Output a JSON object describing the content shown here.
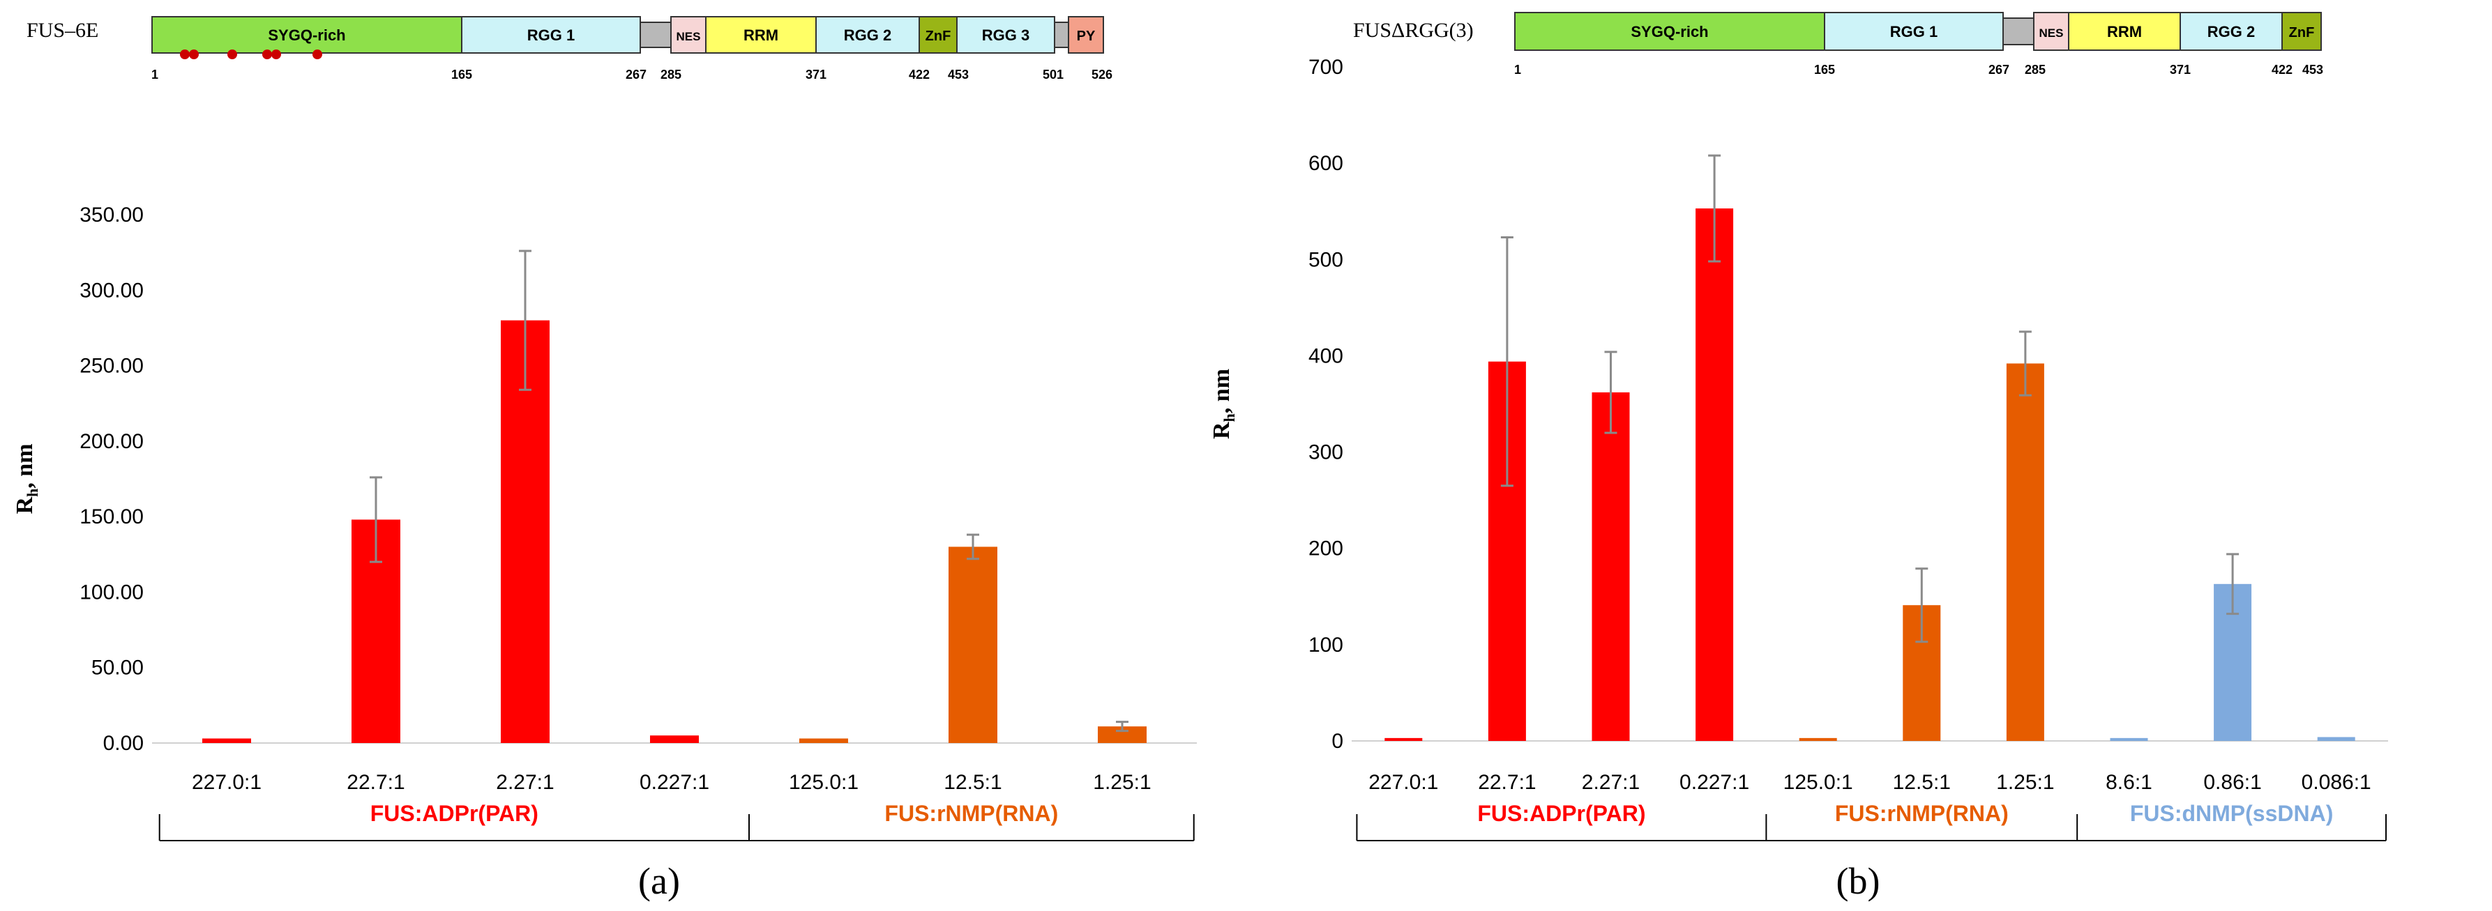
{
  "colors": {
    "par": "#ff0000",
    "rna": "#e65c00",
    "ssdna": "#7faadd",
    "sygq": "#8ee04a",
    "rgg": "#cdf3f8",
    "nes": "#f7d6d6",
    "rrm": "#ffff66",
    "znf": "#99b516",
    "py": "#f4a08a",
    "linker": "#b8b8b8",
    "mutation": "#cc0000",
    "error_bar": "#8a8a8a"
  },
  "panel_a": {
    "protein_name": "FUS–6E",
    "domains": [
      {
        "name": "SYGQ-rich",
        "color_key": "sygq"
      },
      {
        "name": "RGG 1",
        "color_key": "rgg"
      },
      {
        "name": "",
        "color_key": "linker"
      },
      {
        "name": "NES",
        "color_key": "nes"
      },
      {
        "name": "RRM",
        "color_key": "rrm"
      },
      {
        "name": "RGG 2",
        "color_key": "rgg"
      },
      {
        "name": "ZnF",
        "color_key": "znf"
      },
      {
        "name": "RGG 3",
        "color_key": "rgg"
      },
      {
        "name": "",
        "color_key": "linker"
      },
      {
        "name": "PY",
        "color_key": "py"
      }
    ],
    "positions": [
      "1",
      "165",
      "267",
      "285",
      "371",
      "422",
      "453",
      "501",
      "526"
    ],
    "mutation_sites": [
      1,
      2,
      3,
      4,
      5,
      6
    ],
    "group_labels": [
      {
        "text": "FUS:ADPr(PAR)",
        "color_key": "par"
      },
      {
        "text": "FUS:rNMP(RNA)",
        "color_key": "rna"
      }
    ],
    "panel_label": "(a)"
  },
  "panel_b": {
    "protein_name": "FUSΔRGG(3)",
    "domains": [
      {
        "name": "SYGQ-rich",
        "color_key": "sygq"
      },
      {
        "name": "RGG 1",
        "color_key": "rgg"
      },
      {
        "name": "",
        "color_key": "linker"
      },
      {
        "name": "NES",
        "color_key": "nes"
      },
      {
        "name": "RRM",
        "color_key": "rrm"
      },
      {
        "name": "RGG 2",
        "color_key": "rgg"
      },
      {
        "name": "ZnF",
        "color_key": "znf"
      }
    ],
    "positions": [
      "1",
      "165",
      "267",
      "285",
      "371",
      "422",
      "453"
    ],
    "group_labels": [
      {
        "text": "FUS:ADPr(PAR)",
        "color_key": "par"
      },
      {
        "text": "FUS:rNMP(RNA)",
        "color_key": "rna"
      },
      {
        "text": "FUS:dNMP(ssDNA)",
        "color_key": "ssdna"
      }
    ],
    "panel_label": "(b)"
  },
  "chart_data": [
    {
      "type": "bar",
      "title": "",
      "xlabel": "",
      "ylabel_main": "R",
      "ylabel_sub": "h",
      "ylabel_rest": ", nm",
      "ylim": [
        0,
        350
      ],
      "yticks": [
        "0.00",
        "50.00",
        "100.00",
        "150.00",
        "200.00",
        "250.00",
        "300.00",
        "350.00"
      ],
      "categories": [
        "227.0:1",
        "22.7:1",
        "2.27:1",
        "0.227:1",
        "125.0:1",
        "12.5:1",
        "1.25:1"
      ],
      "values": [
        3,
        148,
        280,
        5,
        3,
        130,
        11
      ],
      "errors": [
        0,
        28,
        46,
        0,
        0,
        8,
        3
      ],
      "bar_color_keys": [
        "par",
        "par",
        "par",
        "par",
        "rna",
        "rna",
        "rna"
      ],
      "groups": [
        {
          "label": "FUS:ADPr(PAR)",
          "count": 4
        },
        {
          "label": "FUS:rNMP(RNA)",
          "count": 3
        }
      ]
    },
    {
      "type": "bar",
      "title": "",
      "xlabel": "",
      "ylabel_main": "R",
      "ylabel_sub": "h",
      "ylabel_rest": ", nm",
      "ylim": [
        0,
        700
      ],
      "yticks": [
        "0",
        "100",
        "200",
        "300",
        "400",
        "500",
        "600",
        "700"
      ],
      "categories": [
        "227.0:1",
        "22.7:1",
        "2.27:1",
        "0.227:1",
        "125.0:1",
        "12.5:1",
        "1.25:1",
        "8.6:1",
        "0.86:1",
        "0.086:1"
      ],
      "values": [
        3,
        394,
        362,
        553,
        3,
        141,
        392,
        3,
        163,
        4
      ],
      "errors": [
        0,
        129,
        42,
        55,
        0,
        38,
        33,
        0,
        31,
        0
      ],
      "bar_color_keys": [
        "par",
        "par",
        "par",
        "par",
        "rna",
        "rna",
        "rna",
        "ssdna",
        "ssdna",
        "ssdna"
      ],
      "groups": [
        {
          "label": "FUS:ADPr(PAR)",
          "count": 4
        },
        {
          "label": "FUS:rNMP(RNA)",
          "count": 3
        },
        {
          "label": "FUS:dNMP(ssDNA)",
          "count": 3
        }
      ]
    }
  ]
}
